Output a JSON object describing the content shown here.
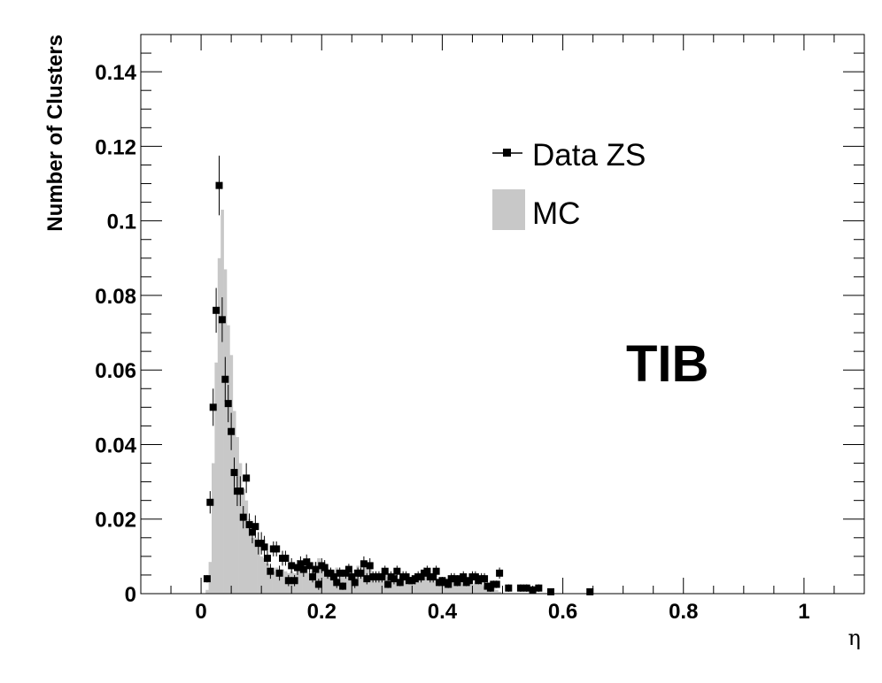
{
  "chart_data": {
    "type": "bar",
    "xlabel": "η",
    "ylabel": "Number of Clusters",
    "xlim": [
      -0.1,
      1.1
    ],
    "ylim": [
      0,
      0.15
    ],
    "x_ticks": [
      0,
      0.2,
      0.4,
      0.6,
      0.8,
      1
    ],
    "x_tick_labels": [
      "0",
      "0.2",
      "0.4",
      "0.6",
      "0.8",
      "1"
    ],
    "y_ticks": [
      0,
      0.02,
      0.04,
      0.06,
      0.08,
      0.1,
      0.12,
      0.14
    ],
    "y_tick_labels": [
      "0",
      "0.02",
      "0.04",
      "0.06",
      "0.08",
      "0.1",
      "0.12",
      "0.14"
    ],
    "legend_position": "top-right",
    "annotation": "TIB",
    "colors": {
      "mc_fill": "#c8c8c8",
      "data_marker": "#000000"
    },
    "series": [
      {
        "name": "Data ZS",
        "kind": "points-with-errors",
        "x": [
          0.01,
          0.015,
          0.02,
          0.025,
          0.03,
          0.035,
          0.04,
          0.045,
          0.05,
          0.055,
          0.06,
          0.065,
          0.07,
          0.075,
          0.08,
          0.085,
          0.09,
          0.095,
          0.1,
          0.105,
          0.11,
          0.115,
          0.12,
          0.125,
          0.13,
          0.135,
          0.14,
          0.145,
          0.15,
          0.155,
          0.16,
          0.165,
          0.17,
          0.175,
          0.18,
          0.185,
          0.19,
          0.195,
          0.2,
          0.205,
          0.21,
          0.215,
          0.22,
          0.225,
          0.23,
          0.235,
          0.24,
          0.245,
          0.25,
          0.255,
          0.26,
          0.265,
          0.27,
          0.275,
          0.28,
          0.285,
          0.29,
          0.295,
          0.3,
          0.305,
          0.31,
          0.315,
          0.32,
          0.325,
          0.33,
          0.335,
          0.34,
          0.345,
          0.35,
          0.355,
          0.36,
          0.365,
          0.37,
          0.375,
          0.38,
          0.385,
          0.39,
          0.395,
          0.4,
          0.405,
          0.41,
          0.415,
          0.42,
          0.425,
          0.43,
          0.435,
          0.44,
          0.445,
          0.45,
          0.455,
          0.46,
          0.465,
          0.47,
          0.475,
          0.48,
          0.485,
          0.49,
          0.495,
          0.51,
          0.53,
          0.54,
          0.55,
          0.56,
          0.58,
          0.645
        ],
        "y": [
          0.004,
          0.0245,
          0.05,
          0.076,
          0.1095,
          0.0735,
          0.0575,
          0.051,
          0.0435,
          0.0325,
          0.0275,
          0.0275,
          0.0205,
          0.031,
          0.0185,
          0.0165,
          0.018,
          0.0135,
          0.0135,
          0.0125,
          0.0095,
          0.006,
          0.012,
          0.012,
          0.0055,
          0.0095,
          0.0095,
          0.0035,
          0.0075,
          0.0035,
          0.007,
          0.008,
          0.0065,
          0.0085,
          0.0075,
          0.0045,
          0.0065,
          0.0025,
          0.0075,
          0.007,
          0.0055,
          0.0055,
          0.0045,
          0.003,
          0.0055,
          0.002,
          0.0055,
          0.0065,
          0.0045,
          0.003,
          0.0055,
          0.0055,
          0.008,
          0.004,
          0.0075,
          0.0045,
          0.0045,
          0.0045,
          0.0045,
          0.006,
          0.0025,
          0.0045,
          0.004,
          0.006,
          0.003,
          0.0045,
          0.0045,
          0.0035,
          0.0035,
          0.004,
          0.0045,
          0.0045,
          0.0055,
          0.006,
          0.0045,
          0.0045,
          0.006,
          0.003,
          0.0035,
          0.003,
          0.0025,
          0.004,
          0.004,
          0.003,
          0.004,
          0.0045,
          0.003,
          0.0035,
          0.0045,
          0.0045,
          0.0035,
          0.004,
          0.004,
          0.002,
          0.0015,
          0.0025,
          0.0025,
          0.0055,
          0.0015,
          0.0015,
          0.0015,
          0.001,
          0.0015,
          0.0005,
          0.0005
        ],
        "err": [
          0.001,
          0.003,
          0.005,
          0.006,
          0.008,
          0.006,
          0.006,
          0.005,
          0.005,
          0.004,
          0.004,
          0.004,
          0.003,
          0.004,
          0.003,
          0.003,
          0.003,
          0.003,
          0.003,
          0.003,
          0.002,
          0.002,
          0.002,
          0.002,
          0.002,
          0.002,
          0.002,
          0.0015,
          0.002,
          0.0015,
          0.002,
          0.002,
          0.002,
          0.002,
          0.002,
          0.0015,
          0.002,
          0.0015,
          0.002,
          0.002,
          0.0015,
          0.0015,
          0.0015,
          0.0015,
          0.0015,
          0.001,
          0.0015,
          0.0015,
          0.0015,
          0.0015,
          0.0015,
          0.0015,
          0.002,
          0.0015,
          0.002,
          0.0015,
          0.0015,
          0.0015,
          0.0015,
          0.0015,
          0.001,
          0.0015,
          0.0015,
          0.0015,
          0.001,
          0.0015,
          0.0015,
          0.001,
          0.001,
          0.0015,
          0.0015,
          0.0015,
          0.0015,
          0.0015,
          0.0015,
          0.0015,
          0.0015,
          0.001,
          0.001,
          0.001,
          0.001,
          0.0015,
          0.0015,
          0.001,
          0.0015,
          0.0015,
          0.001,
          0.001,
          0.0015,
          0.0015,
          0.001,
          0.0015,
          0.0015,
          0.001,
          0.001,
          0.001,
          0.001,
          0.0015,
          0.001,
          0.001,
          0.001,
          0.001,
          0.001,
          0.0005,
          0.0005
        ]
      },
      {
        "name": "MC",
        "kind": "histogram",
        "bin_width": 0.005,
        "x": [
          0.01,
          0.015,
          0.02,
          0.025,
          0.03,
          0.035,
          0.04,
          0.045,
          0.05,
          0.055,
          0.06,
          0.065,
          0.07,
          0.075,
          0.08,
          0.085,
          0.09,
          0.095,
          0.1,
          0.105,
          0.11,
          0.115,
          0.12,
          0.125,
          0.13,
          0.135,
          0.14,
          0.145,
          0.15,
          0.155,
          0.16,
          0.165,
          0.17,
          0.175,
          0.18,
          0.185,
          0.19,
          0.195,
          0.2,
          0.205,
          0.21,
          0.215,
          0.22,
          0.225,
          0.23,
          0.235,
          0.24,
          0.245,
          0.25,
          0.255,
          0.26,
          0.265,
          0.27,
          0.275,
          0.28,
          0.285,
          0.29,
          0.295,
          0.3,
          0.305,
          0.31,
          0.315,
          0.32,
          0.325,
          0.33,
          0.335,
          0.34,
          0.345,
          0.35,
          0.355,
          0.36,
          0.365,
          0.37,
          0.375,
          0.38,
          0.385,
          0.39,
          0.395,
          0.4,
          0.405,
          0.41,
          0.415,
          0.42,
          0.425,
          0.43,
          0.435,
          0.44,
          0.445,
          0.45,
          0.455,
          0.46,
          0.465,
          0.47,
          0.475,
          0.48,
          0.485,
          0.49,
          0.495
        ],
        "values": [
          0.001,
          0.0085,
          0.035,
          0.062,
          0.09,
          0.103,
          0.087,
          0.072,
          0.064,
          0.049,
          0.042,
          0.035,
          0.028,
          0.025,
          0.02,
          0.015,
          0.015,
          0.0125,
          0.01,
          0.0095,
          0.008,
          0.007,
          0.006,
          0.007,
          0.0065,
          0.0065,
          0.006,
          0.0055,
          0.006,
          0.0055,
          0.007,
          0.0065,
          0.006,
          0.0065,
          0.0055,
          0.006,
          0.0085,
          0.0095,
          0.008,
          0.0065,
          0.006,
          0.0055,
          0.006,
          0.007,
          0.0055,
          0.0055,
          0.0045,
          0.0055,
          0.0055,
          0.0065,
          0.0075,
          0.0055,
          0.007,
          0.0075,
          0.0065,
          0.0055,
          0.0055,
          0.0045,
          0.005,
          0.0055,
          0.0045,
          0.004,
          0.0045,
          0.004,
          0.0045,
          0.004,
          0.0045,
          0.0045,
          0.0045,
          0.004,
          0.0045,
          0.0045,
          0.005,
          0.005,
          0.0045,
          0.0045,
          0.004,
          0.0035,
          0.004,
          0.003,
          0.0035,
          0.0035,
          0.003,
          0.0035,
          0.003,
          0.0025,
          0.003,
          0.003,
          0.0025,
          0.003,
          0.0025,
          0.0025,
          0.002,
          0.002,
          0.002,
          0.0015,
          0.001,
          0.0005
        ]
      }
    ]
  }
}
